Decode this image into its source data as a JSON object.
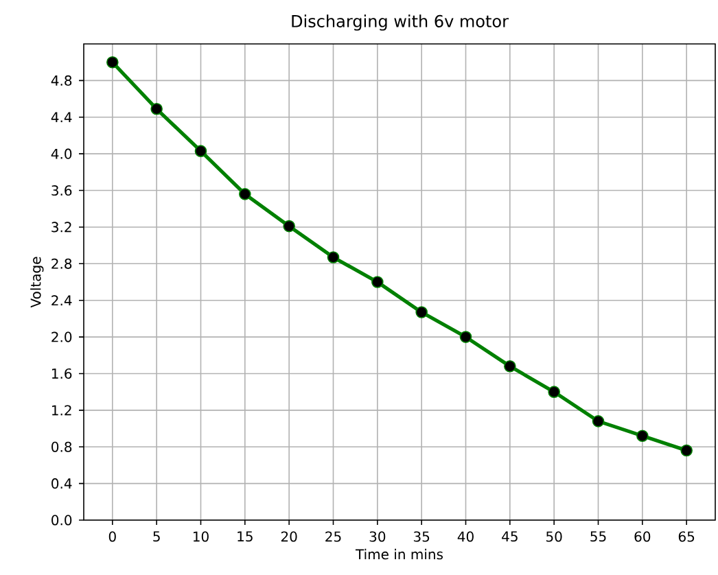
{
  "chart_data": {
    "type": "line",
    "title": "Discharging with 6v motor",
    "xlabel": "Time in mins",
    "ylabel": "Voltage",
    "x": [
      0,
      5,
      10,
      15,
      20,
      25,
      30,
      35,
      40,
      45,
      50,
      55,
      60,
      65
    ],
    "series": [
      {
        "color": "#008000",
        "values": [
          5.0,
          4.49,
          4.03,
          3.56,
          3.21,
          2.87,
          2.6,
          2.27,
          2.0,
          1.68,
          1.4,
          1.08,
          0.92,
          0.76
        ]
      }
    ],
    "xlim": [
      -3.25,
      68.25
    ],
    "ylim": [
      0,
      5.2
    ],
    "xticks": [
      0,
      5,
      10,
      15,
      20,
      25,
      30,
      35,
      40,
      45,
      50,
      55,
      60,
      65
    ],
    "yticks": [
      {
        "value": 0,
        "label": "0.0"
      },
      0.4,
      0.8,
      1.2,
      1.6,
      {
        "value": 2,
        "label": "2.0"
      },
      2.4,
      2.8,
      3.2,
      3.6,
      {
        "value": 4,
        "label": "4.0"
      },
      4.4,
      4.8
    ],
    "grid": true,
    "marker": "circle",
    "line_style": "solid"
  }
}
